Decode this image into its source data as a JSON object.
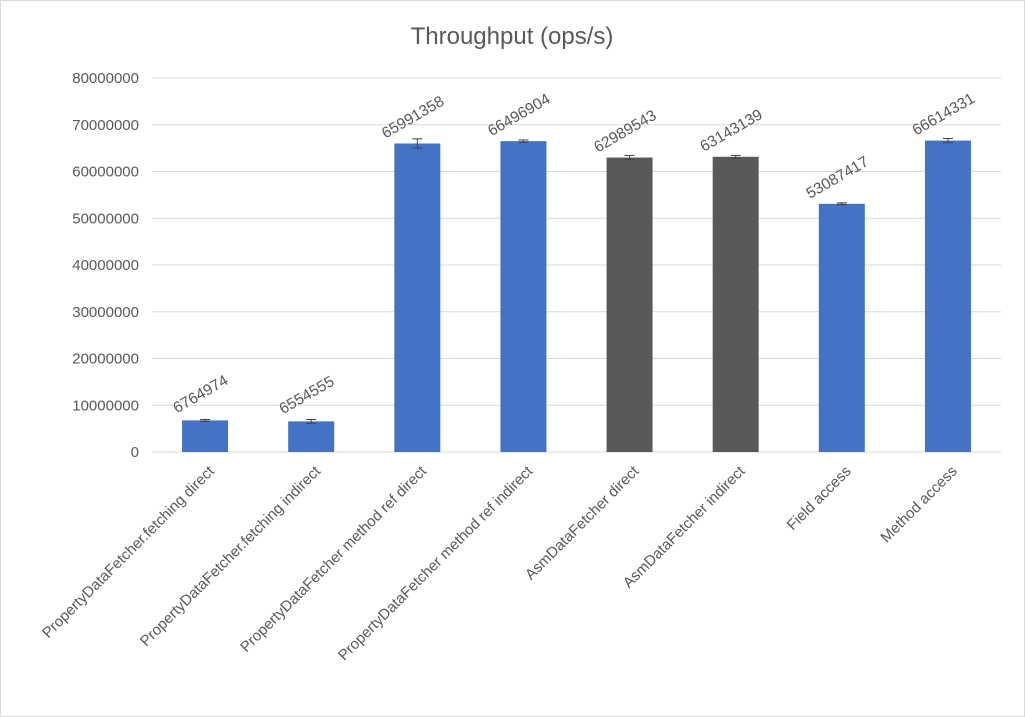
{
  "chart_data": {
    "type": "bar",
    "title": "Throughput (ops/s)",
    "xlabel": "",
    "ylabel": "",
    "ylim": [
      0,
      80000000
    ],
    "yticks": [
      "0",
      "10000000",
      "20000000",
      "30000000",
      "40000000",
      "50000000",
      "60000000",
      "70000000",
      "80000000"
    ],
    "grid": true,
    "legend": "none",
    "categories": [
      "PropertyDataFetcher.fetching direct",
      "PropertyDataFetcher.fetching indirect",
      "PropertyDataFetcher method ref direct",
      "PropertyDataFetcher method ref indirect",
      "AsmDataFetcher direct",
      "AsmDataFetcher indirect",
      "Field access",
      "Method access"
    ],
    "values": [
      6764974,
      6554555,
      65991358,
      66496904,
      62989543,
      63143139,
      53087417,
      66614331
    ],
    "value_labels": [
      "6764974",
      "6554555",
      "65991358",
      "66496904",
      "62989543",
      "63143139",
      "53087417",
      "66614331"
    ],
    "error": [
      200000,
      400000,
      1000000,
      250000,
      450000,
      300000,
      200000,
      450000
    ],
    "colors": [
      "#4472c4",
      "#4472c4",
      "#4472c4",
      "#4472c4",
      "#595959",
      "#595959",
      "#4472c4",
      "#4472c4"
    ]
  }
}
